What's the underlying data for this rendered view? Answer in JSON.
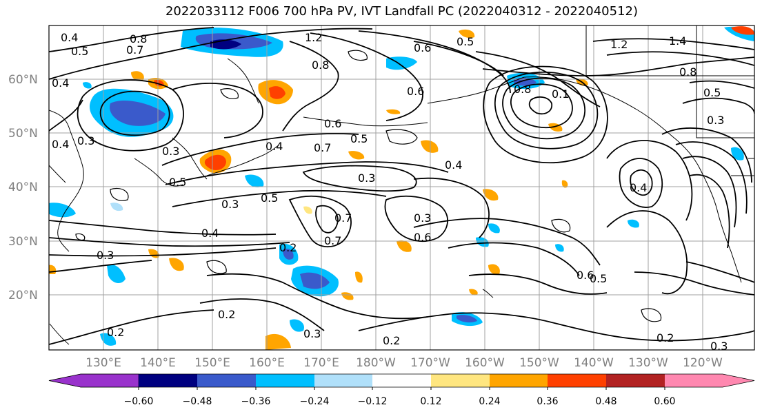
{
  "title": "2022033112 F006 700 hPa PV, IVT Landfall PC (2022040312 - 2022040512)",
  "lat_labels": [
    "60°N",
    "50°N",
    "40°N",
    "30°N",
    "20°N"
  ],
  "lon_labels": [
    "130°E",
    "140°E",
    "150°E",
    "160°E",
    "170°E",
    "180°W",
    "170°W",
    "160°W",
    "150°W",
    "140°W",
    "130°W",
    "120°W"
  ],
  "colorbar": {
    "ticks": [
      "−0.60",
      "−0.48",
      "−0.36",
      "−0.24",
      "−0.12",
      "0.12",
      "0.24",
      "0.36",
      "0.48",
      "0.60"
    ],
    "colors": [
      "#9932cc",
      "#000080",
      "#3a5acb",
      "#00bfff",
      "#b0e0fa",
      "#ffffff",
      "#ffe680",
      "#ffa500",
      "#ff4000",
      "#b22222",
      "#ff88b0"
    ]
  },
  "contour_labels": [
    "0.4",
    "0.5",
    "0.8",
    "0.7",
    "1.2",
    "0.8",
    "0.6",
    "0.5",
    "0.4",
    "0.3",
    "0.4",
    "0.3",
    "0.5",
    "0.6",
    "0.7",
    "0.5",
    "0.3",
    "0.5",
    "0.4",
    "0.6",
    "0.3",
    "0.4",
    "0.8",
    "0.1",
    "1.2",
    "1.4",
    "0.8",
    "0.5",
    "0.3",
    "0.4",
    "0.7",
    "0.3",
    "0.2",
    "0.6",
    "0.7",
    "0.3",
    "0.2",
    "0.3",
    "0.2",
    "0.2",
    "0.6",
    "0.5",
    "0.2",
    "0.3",
    "0.4"
  ]
}
